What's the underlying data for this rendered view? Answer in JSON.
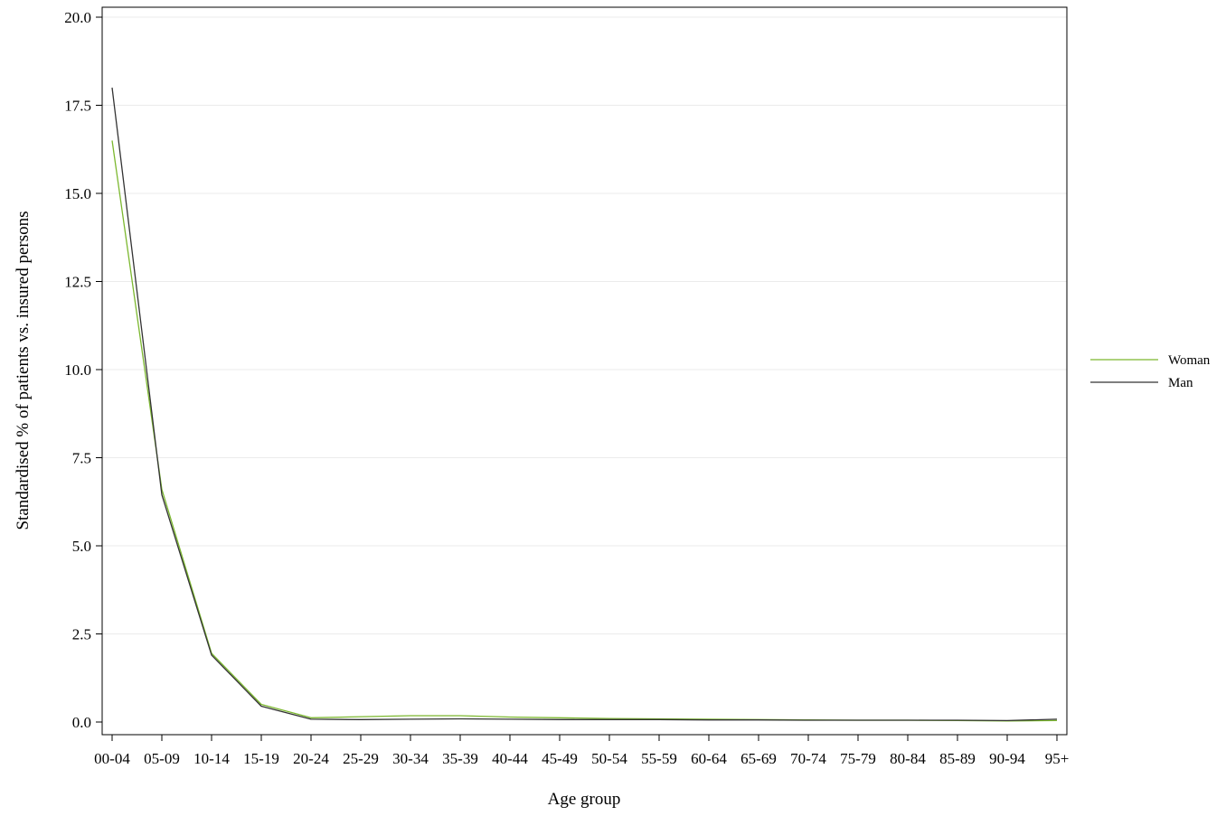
{
  "chart_data": {
    "type": "line",
    "title": "",
    "xlabel": "Age group",
    "ylabel": "Standardised % of patients vs. insured persons",
    "categories": [
      "00-04",
      "05-09",
      "10-14",
      "15-19",
      "20-24",
      "25-29",
      "30-34",
      "35-39",
      "40-44",
      "45-49",
      "50-54",
      "55-59",
      "60-64",
      "65-69",
      "70-74",
      "75-79",
      "80-84",
      "85-89",
      "90-94",
      "95+"
    ],
    "ylim": [
      0,
      20
    ],
    "yticks": [
      "0.0",
      "2.5",
      "5.0",
      "7.5",
      "10.0",
      "12.5",
      "15.0",
      "17.5",
      "20.0"
    ],
    "grid": true,
    "legend_position": "right",
    "series": [
      {
        "name": "Woman",
        "color": "#7cb82f",
        "values": [
          16.5,
          6.6,
          1.95,
          0.5,
          0.12,
          0.15,
          0.18,
          0.18,
          0.14,
          0.12,
          0.1,
          0.09,
          0.08,
          0.07,
          0.06,
          0.05,
          0.05,
          0.04,
          0.03,
          0.04
        ]
      },
      {
        "name": "Man",
        "color": "#333333",
        "values": [
          18.0,
          6.45,
          1.9,
          0.45,
          0.08,
          0.07,
          0.08,
          0.09,
          0.08,
          0.07,
          0.07,
          0.07,
          0.06,
          0.06,
          0.05,
          0.05,
          0.05,
          0.05,
          0.04,
          0.08
        ]
      }
    ]
  }
}
